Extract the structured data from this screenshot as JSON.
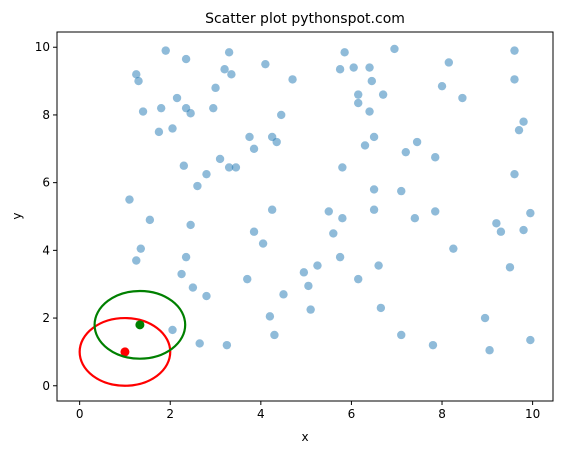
{
  "chart_data": {
    "type": "scatter",
    "title": "Scatter plot pythonspot.com",
    "xlabel": "x",
    "ylabel": "y",
    "xlim": [
      -0.5,
      10.45
    ],
    "ylim": [
      -0.45,
      10.45
    ],
    "xticks": [
      0,
      2,
      4,
      6,
      8,
      10
    ],
    "yticks": [
      0,
      2,
      4,
      6,
      8,
      10
    ],
    "grid": false,
    "point_color": "#1f77b4",
    "points": [
      [
        1.9,
        9.9
      ],
      [
        1.25,
        9.2
      ],
      [
        1.3,
        9.0
      ],
      [
        2.35,
        9.65
      ],
      [
        3.3,
        9.85
      ],
      [
        3.2,
        9.35
      ],
      [
        3.35,
        9.2
      ],
      [
        4.1,
        9.5
      ],
      [
        4.7,
        9.05
      ],
      [
        5.85,
        9.85
      ],
      [
        5.75,
        9.35
      ],
      [
        6.05,
        9.4
      ],
      [
        6.4,
        9.4
      ],
      [
        6.45,
        9.0
      ],
      [
        6.95,
        9.95
      ],
      [
        8.15,
        9.55
      ],
      [
        9.6,
        9.9
      ],
      [
        9.6,
        9.05
      ],
      [
        8.0,
        8.85
      ],
      [
        8.45,
        8.5
      ],
      [
        6.15,
        8.6
      ],
      [
        6.15,
        8.35
      ],
      [
        6.7,
        8.6
      ],
      [
        6.4,
        8.1
      ],
      [
        3.0,
        8.8
      ],
      [
        2.15,
        8.5
      ],
      [
        1.4,
        8.1
      ],
      [
        2.35,
        8.2
      ],
      [
        2.45,
        8.05
      ],
      [
        1.8,
        8.2
      ],
      [
        1.75,
        7.5
      ],
      [
        2.05,
        7.6
      ],
      [
        2.95,
        8.2
      ],
      [
        4.45,
        8.0
      ],
      [
        9.8,
        7.8
      ],
      [
        9.7,
        7.55
      ],
      [
        3.75,
        7.35
      ],
      [
        4.25,
        7.35
      ],
      [
        4.35,
        7.2
      ],
      [
        3.85,
        7.0
      ],
      [
        6.3,
        7.1
      ],
      [
        6.5,
        7.35
      ],
      [
        7.45,
        7.2
      ],
      [
        7.2,
        6.9
      ],
      [
        7.85,
        6.75
      ],
      [
        3.1,
        6.7
      ],
      [
        2.3,
        6.5
      ],
      [
        3.3,
        6.45
      ],
      [
        3.45,
        6.45
      ],
      [
        2.8,
        6.25
      ],
      [
        2.6,
        5.9
      ],
      [
        5.8,
        6.45
      ],
      [
        9.6,
        6.25
      ],
      [
        6.5,
        5.8
      ],
      [
        7.1,
        5.75
      ],
      [
        1.1,
        5.5
      ],
      [
        4.25,
        5.2
      ],
      [
        5.5,
        5.15
      ],
      [
        6.5,
        5.2
      ],
      [
        7.85,
        5.15
      ],
      [
        5.8,
        4.95
      ],
      [
        7.4,
        4.95
      ],
      [
        9.95,
        5.1
      ],
      [
        1.55,
        4.9
      ],
      [
        2.45,
        4.75
      ],
      [
        9.2,
        4.8
      ],
      [
        9.3,
        4.55
      ],
      [
        9.8,
        4.6
      ],
      [
        3.85,
        4.55
      ],
      [
        5.6,
        4.5
      ],
      [
        4.05,
        4.2
      ],
      [
        1.35,
        4.05
      ],
      [
        8.25,
        4.05
      ],
      [
        1.25,
        3.7
      ],
      [
        2.35,
        3.8
      ],
      [
        5.75,
        3.8
      ],
      [
        9.5,
        3.5
      ],
      [
        2.25,
        3.3
      ],
      [
        3.7,
        3.15
      ],
      [
        4.95,
        3.35
      ],
      [
        5.25,
        3.55
      ],
      [
        6.6,
        3.55
      ],
      [
        6.15,
        3.15
      ],
      [
        2.5,
        2.9
      ],
      [
        2.8,
        2.65
      ],
      [
        4.5,
        2.7
      ],
      [
        5.05,
        2.95
      ],
      [
        5.1,
        2.25
      ],
      [
        6.65,
        2.3
      ],
      [
        4.2,
        2.05
      ],
      [
        8.95,
        2.0
      ],
      [
        2.05,
        1.65
      ],
      [
        4.3,
        1.5
      ],
      [
        7.1,
        1.5
      ],
      [
        2.65,
        1.25
      ],
      [
        3.25,
        1.2
      ],
      [
        7.8,
        1.2
      ],
      [
        9.95,
        1.35
      ],
      [
        9.05,
        1.05
      ]
    ],
    "highlights": [
      {
        "center": [
          1.0,
          1.0
        ],
        "rx": 1.0,
        "ry": 1.0,
        "color": "#ff0000"
      },
      {
        "center": [
          1.33,
          1.8
        ],
        "rx": 1.0,
        "ry": 1.0,
        "color": "#008000"
      }
    ]
  }
}
